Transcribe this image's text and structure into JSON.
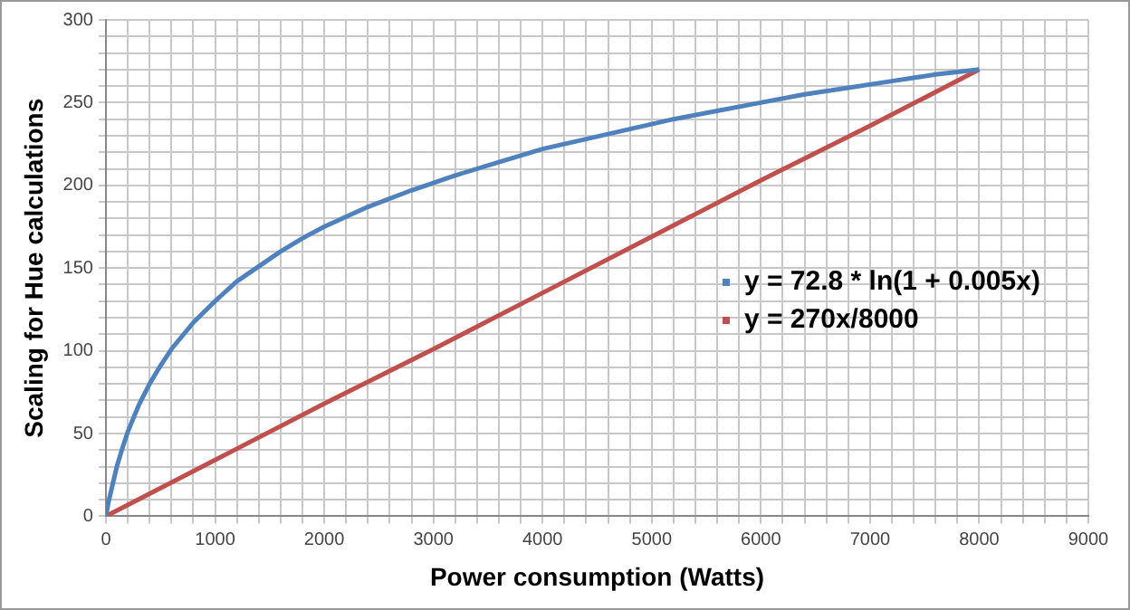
{
  "chart_data": {
    "type": "line",
    "xlabel": "Power consumption (Watts)",
    "ylabel": "Scaling for Hue calculations",
    "xlim": [
      0,
      9000
    ],
    "ylim": [
      0,
      300
    ],
    "xticks": [
      0,
      1000,
      2000,
      3000,
      4000,
      5000,
      6000,
      7000,
      8000,
      9000
    ],
    "yticks": [
      0,
      50,
      100,
      150,
      200,
      250,
      300
    ],
    "grid": true,
    "legend": "right",
    "marker": "none",
    "line_style": "solid",
    "series": [
      {
        "name": "y = 72.8 * ln(1 + 0.005x)",
        "color": "#4f81bd",
        "x": [
          0,
          25,
          50,
          100,
          150,
          200,
          300,
          400,
          500,
          600,
          800,
          1000,
          1200,
          1400,
          1600,
          1800,
          2000,
          2400,
          2800,
          3200,
          3600,
          4000,
          4400,
          4800,
          5200,
          5600,
          6000,
          6400,
          6800,
          7200,
          7600,
          8000
        ],
        "values": [
          0,
          9,
          16,
          30,
          41,
          51,
          67,
          80,
          91,
          101,
          117,
          130,
          142,
          151,
          160,
          168,
          175,
          187,
          197,
          206,
          214,
          222,
          228,
          234,
          240,
          245,
          250,
          255,
          259,
          263,
          267,
          270
        ]
      },
      {
        "name": "y = 270x/8000",
        "color": "#c0504d",
        "x": [
          0,
          1000,
          2000,
          3000,
          4000,
          5000,
          6000,
          7000,
          8000
        ],
        "values": [
          0,
          34,
          68,
          101,
          135,
          169,
          203,
          236,
          270
        ]
      }
    ]
  }
}
